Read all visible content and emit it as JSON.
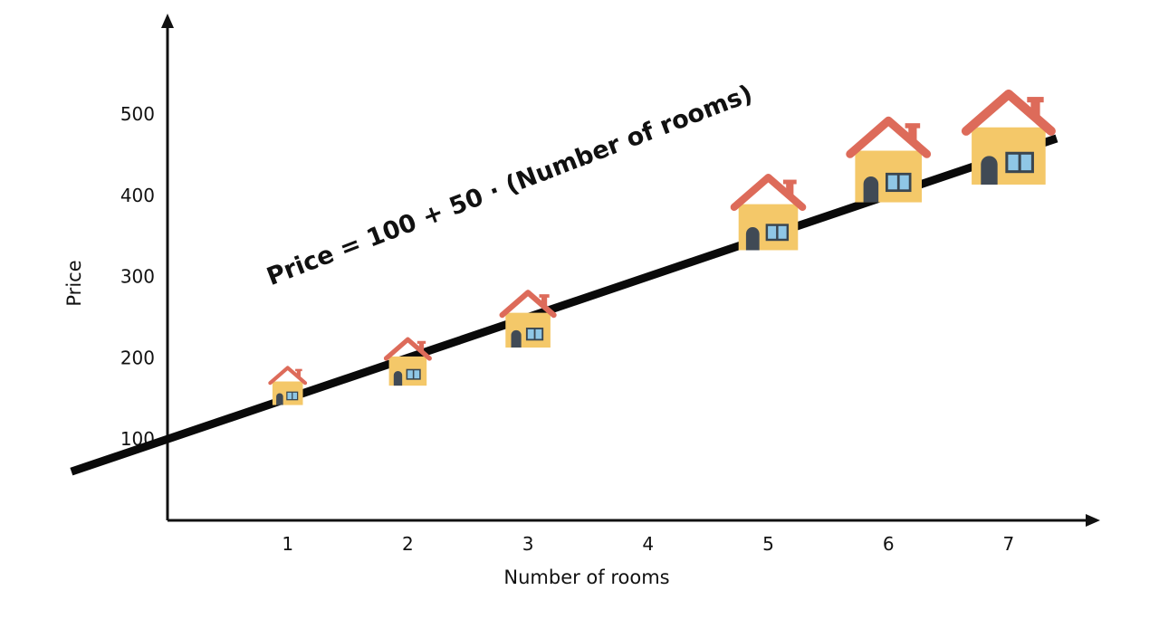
{
  "chart_data": {
    "type": "scatter",
    "xlabel": "Number of rooms",
    "ylabel": "Price",
    "x_ticks": [
      "1",
      "2",
      "3",
      "4",
      "5",
      "6",
      "7"
    ],
    "y_ticks": [
      "100",
      "200",
      "300",
      "400",
      "500"
    ],
    "xlim": [
      0,
      7.5
    ],
    "ylim": [
      0,
      600
    ],
    "grid": false,
    "equation_label": "Price = 100 + 50 · (Number of rooms)",
    "regression_line": {
      "intercept": 100,
      "slope": 50
    },
    "points": [
      {
        "x": 1,
        "y": 155
      },
      {
        "x": 2,
        "y": 182
      },
      {
        "x": 3,
        "y": 232
      },
      {
        "x": 5,
        "y": 358
      },
      {
        "x": 6,
        "y": 420
      },
      {
        "x": 7,
        "y": 445
      }
    ],
    "marker_icon": "house-icon",
    "colors": {
      "axis": "#111111",
      "line": "#0a0a0a",
      "roof": "#dd6b5a",
      "wall": "#f4c869",
      "door": "#404a55",
      "window": "#8fc7e6",
      "window_frame": "#3a4650"
    }
  }
}
